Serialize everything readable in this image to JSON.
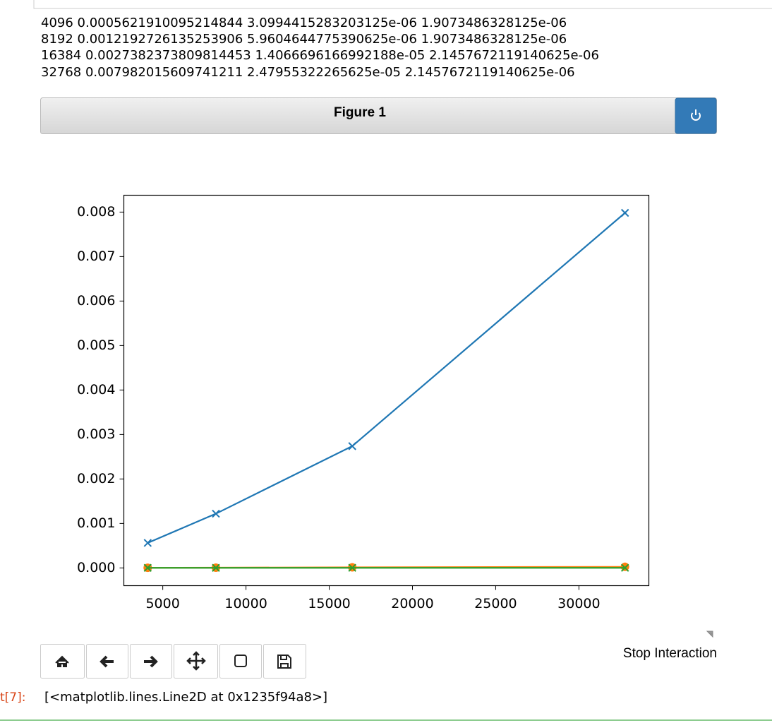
{
  "cell_output": {
    "lines": [
      "4096 0.0005621910095214844 3.0994415283203125e-06 1.9073486328125e-06",
      "8192 0.0012192726135253906 5.9604644775390625e-06 1.9073486328125e-06",
      "16384 0.0027382373809814453 1.4066696166992188e-05 2.1457672119140625e-06",
      "32768 0.007982015609741211 2.47955322265625e-05 2.1457672119140625e-06"
    ],
    "out_prompt": "t[7]:",
    "out_text": "[<matplotlib.lines.Line2D at 0x1235f94a8>]"
  },
  "figure": {
    "title": "Figure 1",
    "stop_button": "Stop Interaction"
  },
  "chart_data": {
    "type": "line",
    "x": [
      4096,
      8192,
      16384,
      32768
    ],
    "series": [
      {
        "color": "#1f77b4",
        "marker": "x",
        "values": [
          0.0005621910095214844,
          0.0012192726135253906,
          0.0027382373809814453,
          0.007982015609741211
        ]
      },
      {
        "color": "#ff7f0e",
        "marker": "o",
        "values": [
          3.0994415283203125e-06,
          5.9604644775390625e-06,
          1.4066696166992188e-05,
          2.47955322265625e-05
        ]
      },
      {
        "color": "#2ca02c",
        "marker": "x",
        "values": [
          1.9073486328125e-06,
          1.9073486328125e-06,
          2.1457672119140625e-06,
          2.1457672119140625e-06
        ]
      }
    ],
    "xlim": [
      2662.4,
      34201.6
    ],
    "ylim": [
      -0.000399,
      0.008379
    ],
    "xticks": [
      5000,
      10000,
      15000,
      20000,
      25000,
      30000
    ],
    "yticks": [
      {
        "value": 0,
        "label": "0.000"
      },
      {
        "value": 0.001,
        "label": "0.001"
      },
      {
        "value": 0.002,
        "label": "0.002"
      },
      {
        "value": 0.003,
        "label": "0.003"
      },
      {
        "value": 0.004,
        "label": "0.004"
      },
      {
        "value": 0.005,
        "label": "0.005"
      },
      {
        "value": 0.006,
        "label": "0.006"
      },
      {
        "value": 0.007,
        "label": "0.007"
      },
      {
        "value": 0.008,
        "label": "0.008"
      }
    ],
    "grid": false
  }
}
